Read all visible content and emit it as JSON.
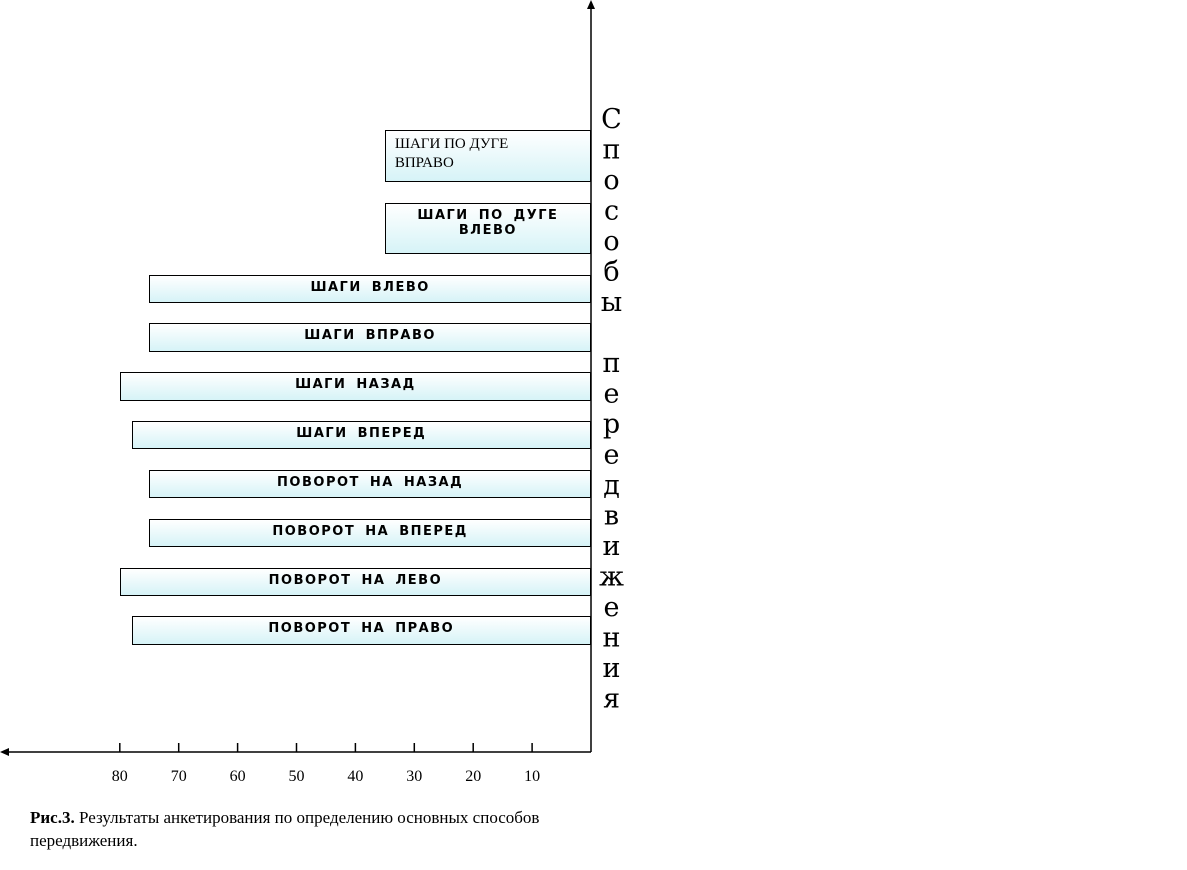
{
  "chart_data": {
    "type": "bar",
    "orientation": "horizontal",
    "reversed_x": true,
    "y_axis_title": "Способы передвижения",
    "categories": [
      "ШАГИ ПО ДУГЕ ВПРАВО",
      "ШАГИ ПО ДУГЕ ВЛЕВО",
      "ШАГИ ВЛЕВО",
      "ШАГИ ВПРАВО",
      "ШАГИ НАЗАД",
      "ШАГИ ВПЕРЕД",
      "ПОВОРОТ НА НАЗАД",
      "ПОВОРОТ НА ВПЕРЕД",
      "ПОВОРОТ НА ЛЕВО",
      "ПОВОРОТ НА ПРАВО"
    ],
    "values": [
      35,
      35,
      75,
      75,
      80,
      78,
      75,
      75,
      80,
      78
    ],
    "color": "#d6f3f7",
    "xlim": [
      0,
      100
    ],
    "xticks": [
      80,
      70,
      60,
      50,
      40,
      30,
      20,
      10
    ],
    "caption_prefix": "Рис.3.",
    "caption": "Результаты анкетирования по определению основных способов передвижения."
  }
}
